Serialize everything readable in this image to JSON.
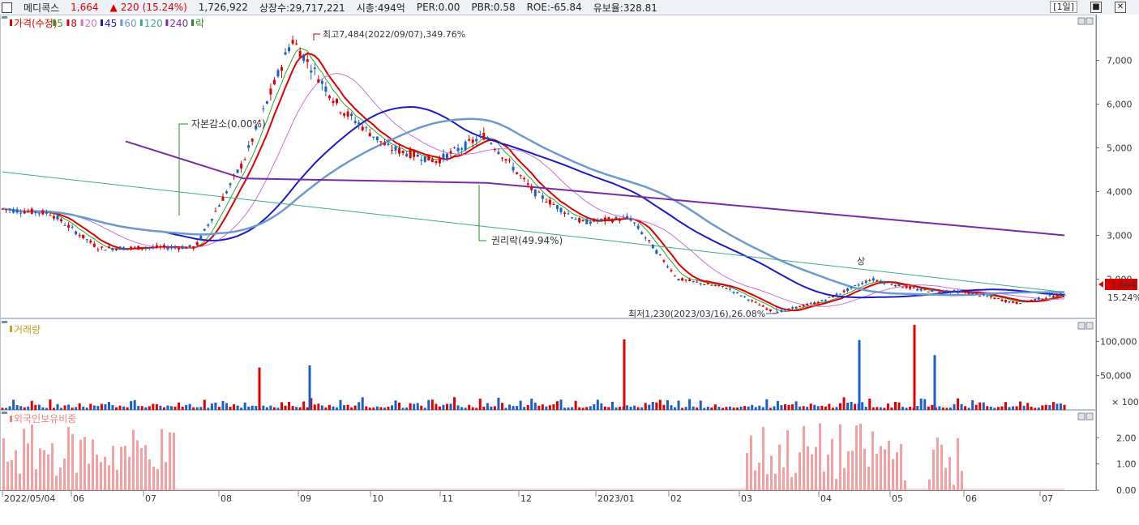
{
  "header": {
    "name": "메디콕스",
    "price": "1,664",
    "change_arrow": "▲",
    "change": "220",
    "change_pct": "(15.24%)",
    "volume": "1,726,922",
    "listed_shares": "상장수:29,717,221",
    "market_cap": "시총:494억",
    "per": "PER:0.00",
    "pbr": "PBR:0.58",
    "roe": "ROE:-65.84",
    "float_ratio": "유보율:328.81",
    "period": "[1일]"
  },
  "legend": {
    "price_label": "가격(수정)",
    "ma": [
      {
        "label": "5",
        "color": "#2aa52a"
      },
      {
        "label": "8",
        "color": "#e00000"
      },
      {
        "label": "20",
        "color": "#d070d0"
      },
      {
        "label": "45",
        "color": "#1a1ac8"
      },
      {
        "label": "60",
        "color": "#6a9ad0"
      },
      {
        "label": "120",
        "color": "#3aaa88"
      },
      {
        "label": "240",
        "color": "#7a2aa8"
      }
    ],
    "drop_label": "락",
    "volume_label": "거래량",
    "foreign_label": "외국인보유비중"
  },
  "annotations": {
    "high": "최고7,484(2022/09/07),349.76%",
    "capital_reduction": "자본감소(0.00%)",
    "rights_drop": "권리락(49.94%)",
    "low": "최저1,230(2023/03/16),26.08%",
    "upper_limit": "상",
    "last_price": "1,664",
    "last_pct": "15.24%"
  },
  "axes": {
    "price_ticks": [
      {
        "v": 7000,
        "label": "7,000"
      },
      {
        "v": 6000,
        "label": "6,000"
      },
      {
        "v": 5000,
        "label": "5,000"
      },
      {
        "v": 4000,
        "label": "4,000"
      },
      {
        "v": 3000,
        "label": "3,000"
      },
      {
        "v": 2000,
        "label": "2,000"
      }
    ],
    "volume_ticks": [
      {
        "v": 100000,
        "label": "100,000"
      },
      {
        "v": 50000,
        "label": "50,000"
      }
    ],
    "volume_unit": "× 100",
    "foreign_ticks": [
      {
        "v": 2,
        "label": "2.00"
      },
      {
        "v": 1,
        "label": "1.00"
      },
      {
        "v": 0,
        "label": "0.00"
      }
    ],
    "x_labels": [
      "2022/05/04",
      "06",
      "07",
      "08",
      "09",
      "10",
      "11",
      "12",
      "2023/01",
      "02",
      "03",
      "04",
      "05",
      "06",
      "07"
    ]
  },
  "chart_data": {
    "type": "candlestick",
    "period": "daily",
    "x": [
      "2022/05/04",
      "06",
      "07",
      "08",
      "09",
      "10",
      "11",
      "12",
      "2023/01",
      "02",
      "03",
      "04",
      "05",
      "06",
      "07"
    ],
    "price_range": [
      1100,
      7900
    ],
    "volume_range": [
      0,
      130000
    ],
    "volume_unit": "× 100",
    "foreign_range": [
      0,
      3.0
    ],
    "price_path": [
      {
        "month": "05",
        "price": 3600
      },
      {
        "month": "06",
        "price": 3500
      },
      {
        "month": "06",
        "price": 2700
      },
      {
        "month": "07",
        "price": 2720
      },
      {
        "month": "07",
        "price": 2730
      },
      {
        "month": "08",
        "price": 4700
      },
      {
        "month": "09",
        "price": 7484
      },
      {
        "month": "09",
        "price": 5900
      },
      {
        "month": "10",
        "price": 5000
      },
      {
        "month": "10",
        "price": 4700
      },
      {
        "month": "11",
        "price": 5300
      },
      {
        "month": "11",
        "price": 4000
      },
      {
        "month": "12",
        "price": 3300
      },
      {
        "month": "2023/01",
        "price": 3400
      },
      {
        "month": "2023/01",
        "price": 2000
      },
      {
        "month": "02",
        "price": 1800
      },
      {
        "month": "03",
        "price": 1230
      },
      {
        "month": "04",
        "price": 1500
      },
      {
        "month": "04",
        "price": 2000
      },
      {
        "month": "05",
        "price": 1750
      },
      {
        "month": "06",
        "price": 1700
      },
      {
        "month": "07",
        "price": 1450
      },
      {
        "month": "07",
        "price": 1664
      }
    ],
    "ma240_range": [
      5150,
      3000
    ],
    "ma120_range": [
      4450,
      1700
    ],
    "high": {
      "date": "2022/09/07",
      "price": 7484
    },
    "low": {
      "date": "2023/03/16",
      "price": 1230
    },
    "last": {
      "price": 1664,
      "change_pct": 15.24
    },
    "volume_peaks": [
      {
        "month": "08",
        "volume": 62000
      },
      {
        "month": "09",
        "volume": 65000
      },
      {
        "month": "2023/01",
        "volume": 103000
      },
      {
        "month": "04",
        "volume": 102000
      },
      {
        "month": "05",
        "volume": 124000
      },
      {
        "month": "05",
        "volume": 80000
      }
    ],
    "foreign_blocks": [
      {
        "from": "05",
        "to": "07",
        "range": [
          0.5,
          2.5
        ]
      },
      {
        "from": "07",
        "to": "07",
        "range": [
          0.8,
          0.9
        ]
      },
      {
        "from": "03",
        "to": "04",
        "range": [
          0.3,
          2.6
        ]
      },
      {
        "from": "05",
        "to": "06",
        "range": [
          0.2,
          2.1
        ]
      }
    ]
  }
}
